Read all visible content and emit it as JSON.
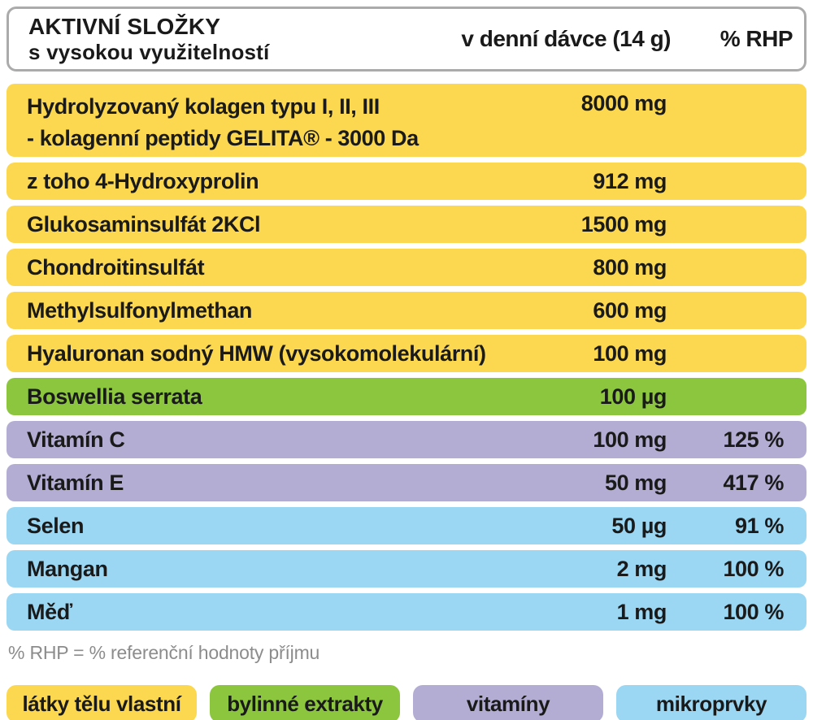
{
  "header": {
    "title_line1": "AKTIVNÍ SLOŽKY",
    "title_line2": "s vysokou využitelností",
    "col_dose": "v denní dávce (14 g)",
    "col_rhp": "% RHP"
  },
  "rows": [
    {
      "name": "Hydrolyzovaný kolagen typu I, II, III",
      "name_line2": "- kolagenní peptidy GELITA® - 3000 Da",
      "amount": "8000 mg",
      "rhp": "",
      "category": "latky-telu-vlastni"
    },
    {
      "name": "z toho 4-Hydroxyprolin",
      "amount": "912 mg",
      "rhp": "",
      "category": "latky-telu-vlastni"
    },
    {
      "name": "Glukosaminsulfát 2KCl",
      "amount": "1500 mg",
      "rhp": "",
      "category": "latky-telu-vlastni"
    },
    {
      "name": "Chondroitinsulfát",
      "amount": "800 mg",
      "rhp": "",
      "category": "latky-telu-vlastni"
    },
    {
      "name": "Methylsulfonylmethan",
      "amount": "600 mg",
      "rhp": "",
      "category": "latky-telu-vlastni"
    },
    {
      "name": "Hyaluronan sodný HMW (vysokomolekulární)",
      "amount": "100 mg",
      "rhp": "",
      "category": "latky-telu-vlastni"
    },
    {
      "name": "Boswellia serrata",
      "amount": "100 µg",
      "rhp": "",
      "category": "bylinne-extrakty"
    },
    {
      "name": "Vitamín C",
      "amount": "100 mg",
      "rhp": "125 %",
      "category": "vitaminy"
    },
    {
      "name": "Vitamín E",
      "amount": "50 mg",
      "rhp": "417 %",
      "category": "vitaminy"
    },
    {
      "name": "Selen",
      "amount": "50 µg",
      "rhp": "91 %",
      "category": "mikroprvky"
    },
    {
      "name": "Mangan",
      "amount": "2 mg",
      "rhp": "100 %",
      "category": "mikroprvky"
    },
    {
      "name": "Měď",
      "amount": "1 mg",
      "rhp": "100 %",
      "category": "mikroprvky"
    }
  ],
  "footnote": "% RHP = % referenční hodnoty příjmu",
  "legend": [
    {
      "label": "látky tělu vlastní",
      "color": "#fbd84f"
    },
    {
      "label": "bylinné extrakty",
      "color": "#8bc63e"
    },
    {
      "label": "vitamíny",
      "color": "#b4add3"
    },
    {
      "label": "mikroprvky",
      "color": "#9bd6f2"
    }
  ],
  "colors": {
    "row_yellow": "#fbd84f",
    "row_green": "#8bc63e",
    "row_purple": "#b4add3",
    "row_blue": "#9bd6f2",
    "header_border": "#ababab",
    "footnote_text": "#8c8c8c",
    "text": "#1a1a1a"
  }
}
